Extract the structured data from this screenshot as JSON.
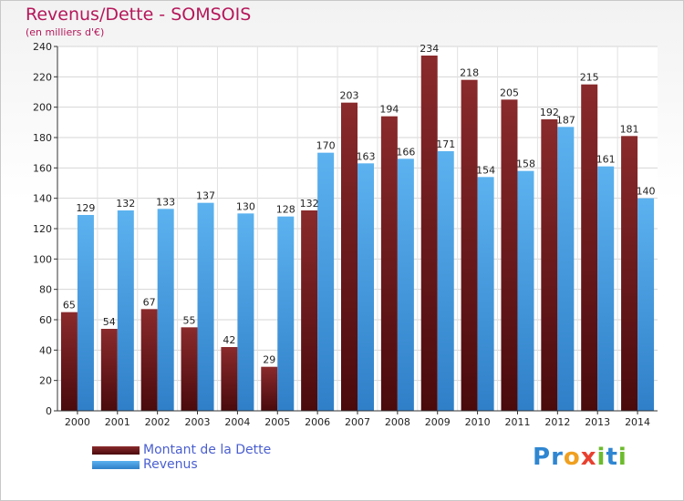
{
  "title": "Revenus/Dette - SOMSOIS",
  "subtitle": "(en milliers d'€)",
  "logo": {
    "text": "Proxiti",
    "letters": [
      "P",
      "r",
      "o",
      "x",
      "i",
      "t",
      "i"
    ],
    "colors": [
      "#2f86d1",
      "#2f86d1",
      "#f0a020",
      "#e8402f",
      "#6cbb2c",
      "#2f86d1",
      "#6cbb2c"
    ]
  },
  "legend": [
    {
      "label": "Montant de la Dette",
      "color": "#7a1a1c"
    },
    {
      "label": "Revenus",
      "color": "#4ea5e8"
    }
  ],
  "chart_data": {
    "type": "bar",
    "categories": [
      "2000",
      "2001",
      "2002",
      "2003",
      "2004",
      "2005",
      "2006",
      "2007",
      "2008",
      "2009",
      "2010",
      "2011",
      "2012",
      "2013",
      "2014"
    ],
    "series": [
      {
        "name": "Montant de la Dette",
        "values": [
          65,
          54,
          67,
          55,
          42,
          29,
          132,
          203,
          194,
          234,
          218,
          205,
          192,
          215,
          181
        ],
        "color": "#7a1a1c"
      },
      {
        "name": "Revenus",
        "values": [
          129,
          132,
          133,
          137,
          130,
          128,
          170,
          163,
          166,
          171,
          154,
          158,
          187,
          161,
          140
        ],
        "color": "#4ea5e8"
      }
    ],
    "yticks": [
      0,
      20,
      40,
      60,
      80,
      100,
      120,
      140,
      160,
      180,
      200,
      220,
      240
    ],
    "ylim": [
      0,
      240
    ],
    "grid": true,
    "legend_position": "bottom-left",
    "title": "Revenus/Dette - SOMSOIS",
    "ylabel": "(en milliers d'€)"
  }
}
